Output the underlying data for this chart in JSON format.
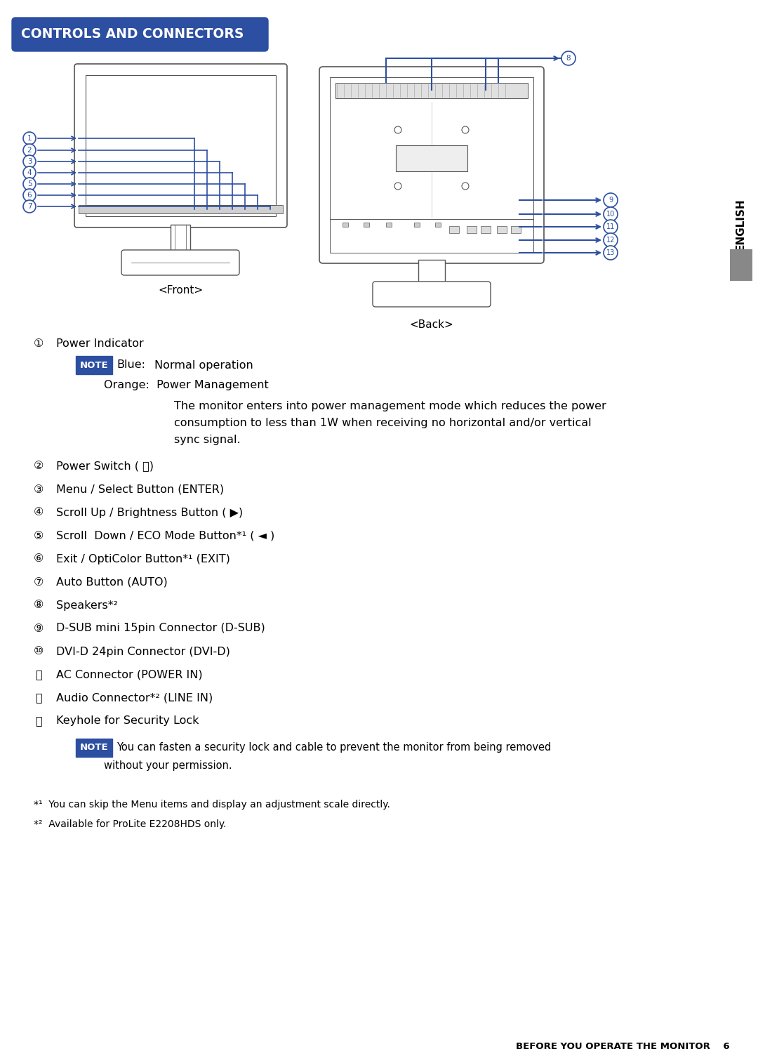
{
  "title": "CONTROLS AND CONNECTORS",
  "title_bg": "#2d4fa1",
  "title_color": "#ffffff",
  "front_label": "<Front>",
  "back_label": "<Back>",
  "english_label": "ENGLISH",
  "note_bg": "#2d4fa1",
  "note_color": "#ffffff",
  "bg_color": "#ffffff",
  "text_color": "#000000",
  "blue_line_color": "#2d4fa1",
  "diagram_line_color": "#555555",
  "gray_bar_color": "#888888",
  "footnote1": "*¹  You can skip the Menu items and display an adjustment scale directly.",
  "footnote2": "*²  Available for ProLite E2208HDS only.",
  "footer": "BEFORE YOU OPERATE THE MONITOR    6",
  "items": [
    {
      "num": "①",
      "text": "Power Indicator"
    },
    {
      "num": "②",
      "text": "Power Switch ( ⏻)"
    },
    {
      "num": "③",
      "text": "Menu / Select Button (ENTER)"
    },
    {
      "num": "④",
      "text": "Scroll Up / Brightness Button ( ▶)"
    },
    {
      "num": "⑤",
      "text": "Scroll  Down / ECO Mode Button*¹ ( ◄ )"
    },
    {
      "num": "⑥",
      "text": "Exit / OptiColor Button*¹ (EXIT)"
    },
    {
      "num": "⑦",
      "text": "Auto Button (AUTO)"
    },
    {
      "num": "⑧",
      "text": "Speakers*²"
    },
    {
      "num": "⑨",
      "text": "D-SUB mini 15pin Connector (D-SUB)"
    },
    {
      "num": "⑩",
      "text": "DVI-D 24pin Connector (DVI-D)"
    },
    {
      "num": "⑪",
      "text": "AC Connector (POWER IN)"
    },
    {
      "num": "⑫",
      "text": "Audio Connector*² (LINE IN)"
    },
    {
      "num": "⑬",
      "text": "Keyhole for Security Lock"
    }
  ]
}
